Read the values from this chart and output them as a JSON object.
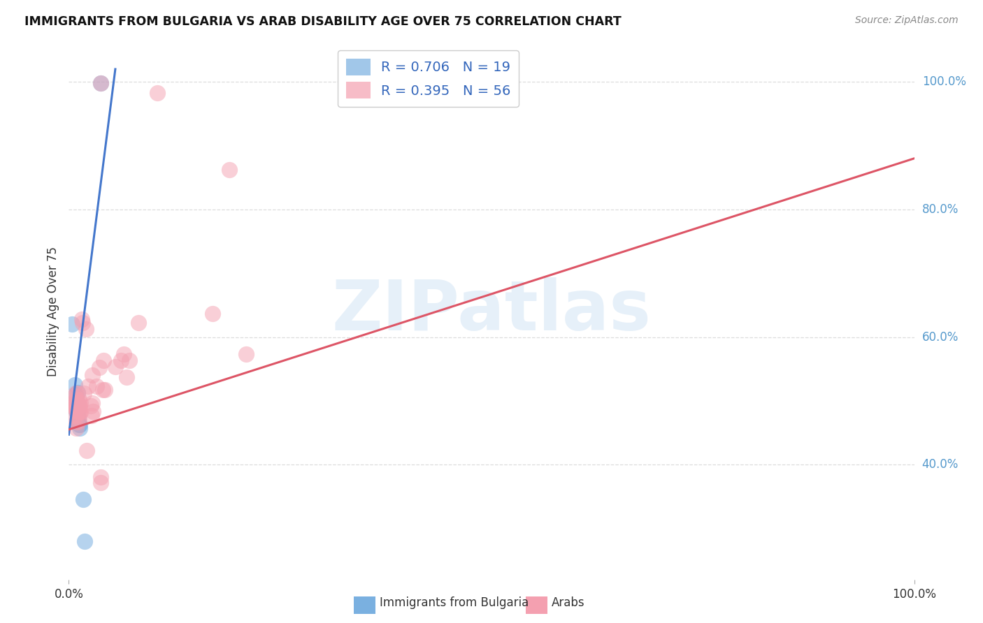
{
  "title": "IMMIGRANTS FROM BULGARIA VS ARAB DISABILITY AGE OVER 75 CORRELATION CHART",
  "source": "Source: ZipAtlas.com",
  "ylabel": "Disability Age Over 75",
  "legend_label1": "Immigrants from Bulgaria",
  "legend_label2": "Arabs",
  "r1": 0.706,
  "n1": 19,
  "r2": 0.395,
  "n2": 56,
  "xlim": [
    0.0,
    1.0
  ],
  "ylim": [
    0.22,
    1.06
  ],
  "ytick_vals": [
    0.4,
    0.6,
    0.8,
    1.0
  ],
  "ytick_labels": [
    "40.0%",
    "60.0%",
    "80.0%",
    "100.0%"
  ],
  "bg_color": "#ffffff",
  "grid_color": "#dddddd",
  "blue_scatter_color": "#7ab0e0",
  "pink_scatter_color": "#f4a0b0",
  "blue_line_color": "#4477cc",
  "pink_line_color": "#dd5566",
  "blue_line": [
    [
      0.0,
      0.447
    ],
    [
      0.055,
      1.02
    ]
  ],
  "pink_line": [
    [
      0.0,
      0.455
    ],
    [
      1.0,
      0.88
    ]
  ],
  "blue_points": [
    [
      0.004,
      0.62
    ],
    [
      0.007,
      0.525
    ],
    [
      0.008,
      0.51
    ],
    [
      0.008,
      0.497
    ],
    [
      0.009,
      0.493
    ],
    [
      0.009,
      0.497
    ],
    [
      0.009,
      0.483
    ],
    [
      0.01,
      0.513
    ],
    [
      0.01,
      0.497
    ],
    [
      0.01,
      0.487
    ],
    [
      0.01,
      0.477
    ],
    [
      0.011,
      0.467
    ],
    [
      0.011,
      0.473
    ],
    [
      0.012,
      0.463
    ],
    [
      0.013,
      0.457
    ],
    [
      0.013,
      0.463
    ],
    [
      0.017,
      0.345
    ],
    [
      0.019,
      0.28
    ],
    [
      0.038,
      0.998
    ]
  ],
  "pink_points": [
    [
      0.005,
      0.497
    ],
    [
      0.006,
      0.491
    ],
    [
      0.007,
      0.507
    ],
    [
      0.007,
      0.492
    ],
    [
      0.008,
      0.512
    ],
    [
      0.008,
      0.497
    ],
    [
      0.008,
      0.487
    ],
    [
      0.008,
      0.477
    ],
    [
      0.009,
      0.502
    ],
    [
      0.009,
      0.492
    ],
    [
      0.009,
      0.487
    ],
    [
      0.009,
      0.467
    ],
    [
      0.009,
      0.457
    ],
    [
      0.01,
      0.512
    ],
    [
      0.01,
      0.497
    ],
    [
      0.01,
      0.492
    ],
    [
      0.01,
      0.482
    ],
    [
      0.011,
      0.492
    ],
    [
      0.011,
      0.482
    ],
    [
      0.011,
      0.467
    ],
    [
      0.012,
      0.502
    ],
    [
      0.012,
      0.492
    ],
    [
      0.012,
      0.472
    ],
    [
      0.013,
      0.492
    ],
    [
      0.013,
      0.482
    ],
    [
      0.014,
      0.497
    ],
    [
      0.014,
      0.482
    ],
    [
      0.015,
      0.628
    ],
    [
      0.016,
      0.623
    ],
    [
      0.018,
      0.512
    ],
    [
      0.02,
      0.613
    ],
    [
      0.021,
      0.422
    ],
    [
      0.023,
      0.523
    ],
    [
      0.026,
      0.492
    ],
    [
      0.027,
      0.477
    ],
    [
      0.028,
      0.497
    ],
    [
      0.029,
      0.483
    ],
    [
      0.033,
      0.523
    ],
    [
      0.036,
      0.552
    ],
    [
      0.038,
      0.372
    ],
    [
      0.04,
      0.517
    ],
    [
      0.041,
      0.563
    ],
    [
      0.043,
      0.517
    ],
    [
      0.055,
      0.553
    ],
    [
      0.062,
      0.563
    ],
    [
      0.065,
      0.573
    ],
    [
      0.068,
      0.537
    ],
    [
      0.072,
      0.563
    ],
    [
      0.082,
      0.623
    ],
    [
      0.038,
      0.38
    ],
    [
      0.17,
      0.637
    ],
    [
      0.19,
      0.862
    ],
    [
      0.21,
      0.573
    ],
    [
      0.105,
      0.983
    ],
    [
      0.038,
      0.998
    ],
    [
      0.028,
      0.54
    ]
  ]
}
